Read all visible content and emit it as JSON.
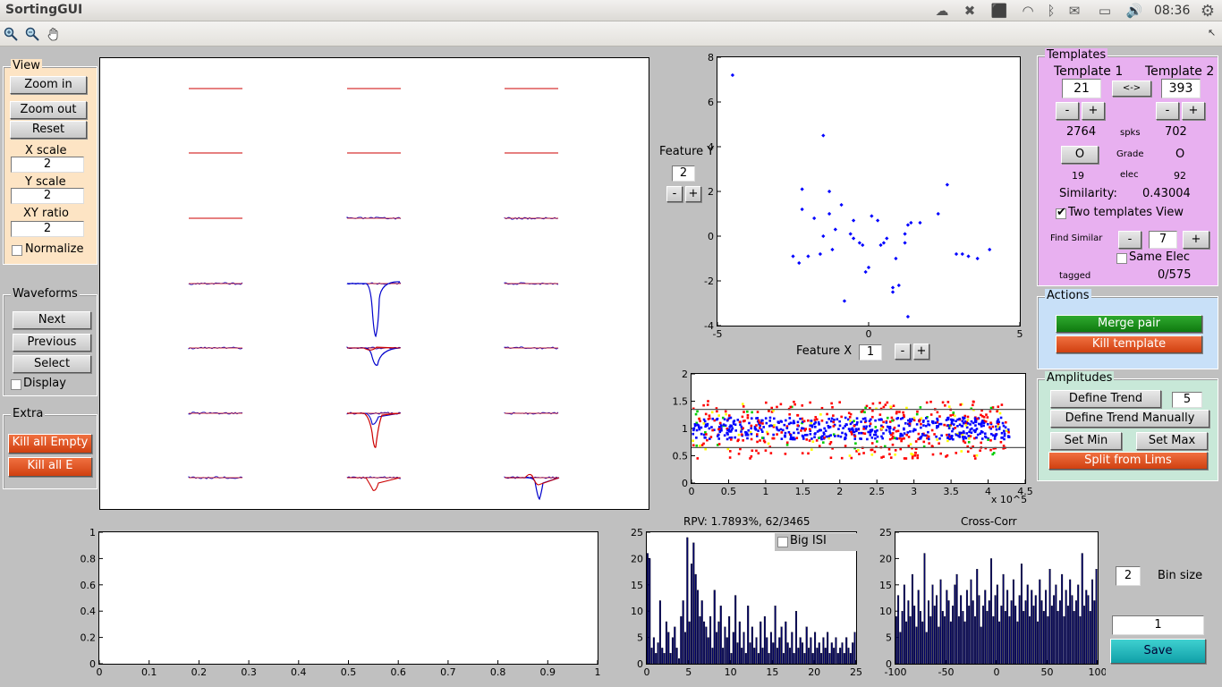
{
  "app": {
    "title": "SortingGUI",
    "clock": "08:36"
  },
  "tray_icons": [
    "cloud-icon",
    "dropbox-icon",
    "update-icon",
    "wifi-icon",
    "bluetooth-icon",
    "mail-icon",
    "battery-icon",
    "volume-icon",
    "gear-icon"
  ],
  "toolbar": {
    "tools": [
      "zoom-in-icon",
      "zoom-out-icon",
      "pan-icon"
    ]
  },
  "view": {
    "title": "View",
    "zoom_in": "Zoom in",
    "zoom_out": "Zoom out",
    "reset": "Reset",
    "x_scale_label": "X scale",
    "x_scale_value": "2",
    "y_scale_label": "Y scale",
    "y_scale_value": "2",
    "xy_ratio_label": "XY ratio",
    "xy_ratio_value": "2",
    "normalize_label": "Normalize"
  },
  "waveforms": {
    "title": "Waveforms",
    "next": "Next",
    "previous": "Previous",
    "select": "Select",
    "display_label": "Display"
  },
  "extra": {
    "title": "Extra",
    "kill_all_empty": "Kill all Empty",
    "kill_all_e": "Kill all E"
  },
  "feature": {
    "y_label": "Feature Y",
    "y_value": "2",
    "minus": "-",
    "plus": "+",
    "x_label": "Feature X",
    "x_value": "1"
  },
  "templates": {
    "title": "Templates",
    "t1_label": "Template 1",
    "t2_label": "Template 2",
    "t1_value": "21",
    "t2_value": "393",
    "swap": "<->",
    "minus": "-",
    "plus": "+",
    "t1_spikes": "2764",
    "spks_label": "spks",
    "t2_spikes": "702",
    "t1_grade": "O",
    "grade_label": "Grade",
    "t2_grade": "O",
    "t1_elec": "19",
    "elec_label": "elec",
    "t2_elec": "92",
    "similarity_label": "Similarity:",
    "similarity_value": "0.43004",
    "two_templates_label": "Two templates View",
    "find_similar_label": "Find Similar",
    "find_similar_value": "7",
    "same_elec_label": "Same Elec",
    "tagged_label": "tagged",
    "tagged_value": "0/575"
  },
  "actions": {
    "title": "Actions",
    "merge_pair": "Merge pair",
    "kill_template": "Kill template"
  },
  "amplitudes": {
    "title": "Amplitudes",
    "define_trend": "Define Trend",
    "trend_value": "5",
    "define_trend_manually": "Define Trend Manually",
    "set_min": "Set Min",
    "set_max": "Set Max",
    "split_from_lims": "Split from Lims"
  },
  "isi": {
    "title": "RPV: 1.7893%, 62/3465",
    "big_isi_label": "Big ISI"
  },
  "crosscorr": {
    "title": "Cross-Corr"
  },
  "bin": {
    "value": "2",
    "label": "Bin size"
  },
  "save": {
    "value": "1",
    "label": "Save"
  },
  "colors": {
    "templates_bg": "#e8b0f0",
    "actions_bg": "#c8e0f8",
    "amplitudes_bg": "#c8e8d8",
    "view_bg": "#fde4c4"
  },
  "chart_data": [
    {
      "type": "scatter",
      "name_ref": "feature-scatter",
      "xlim": [
        -5,
        5
      ],
      "ylim": [
        -4,
        8
      ],
      "x_ticks": [
        "-5",
        "0",
        "5"
      ],
      "y_ticks": [
        "-4",
        "-2",
        "0",
        "2",
        "4",
        "6",
        "8"
      ],
      "color": "#0000ff",
      "points": [
        [
          -4.5,
          7.2
        ],
        [
          -1.5,
          4.5
        ],
        [
          -2.2,
          2.1
        ],
        [
          -2.2,
          1.2
        ],
        [
          -1.8,
          0.8
        ],
        [
          -1.5,
          0
        ],
        [
          -1.2,
          -0.6
        ],
        [
          -1.6,
          -0.8
        ],
        [
          -2.5,
          -0.9
        ],
        [
          -2.3,
          -1.2
        ],
        [
          -2.0,
          -0.9
        ],
        [
          -1.3,
          1.0
        ],
        [
          -1.1,
          0.3
        ],
        [
          -0.9,
          1.4
        ],
        [
          -0.5,
          0.7
        ],
        [
          -0.5,
          -0.1
        ],
        [
          -0.3,
          -0.3
        ],
        [
          -0.1,
          -1.6
        ],
        [
          -0.2,
          -0.4
        ],
        [
          0.1,
          0.9
        ],
        [
          0.3,
          0.7
        ],
        [
          0.4,
          -0.4
        ],
        [
          0.5,
          -0.3
        ],
        [
          0.6,
          -0.1
        ],
        [
          0.9,
          -1.0
        ],
        [
          0.8,
          -2.3
        ],
        [
          1.0,
          -2.2
        ],
        [
          0.8,
          -2.5
        ],
        [
          1.2,
          -0.3
        ],
        [
          1.3,
          0.5
        ],
        [
          1.4,
          0.6
        ],
        [
          1.2,
          0.1
        ],
        [
          1.7,
          0.6
        ],
        [
          2.3,
          1.0
        ],
        [
          2.6,
          2.3
        ],
        [
          2.9,
          -0.8
        ],
        [
          3.1,
          -0.8
        ],
        [
          3.3,
          -0.9
        ],
        [
          3.6,
          -1.0
        ],
        [
          4.0,
          -0.6
        ],
        [
          1.3,
          -3.6
        ],
        [
          -0.8,
          -2.9
        ],
        [
          0.0,
          -1.4
        ],
        [
          -1.3,
          2.0
        ],
        [
          -0.6,
          0.1
        ]
      ]
    },
    {
      "type": "scatter",
      "name_ref": "amplitude-scatter",
      "xlim": [
        0,
        4.5
      ],
      "ylim": [
        0,
        2
      ],
      "x_ticks": [
        "0",
        "0.5",
        "1",
        "1.5",
        "2",
        "2.5",
        "3",
        "3.5",
        "4",
        "4.5"
      ],
      "y_ticks": [
        "0",
        "0.5",
        "1",
        "1.5",
        "2"
      ],
      "x_multiplier": "x 10^5",
      "limit_lines": [
        0.65,
        1.35
      ],
      "series_colors": [
        "#0000ff",
        "#ff0000",
        "#ffff00",
        "#00cc00"
      ]
    },
    {
      "type": "line",
      "name_ref": "empty-axes",
      "xlim": [
        0,
        1
      ],
      "ylim": [
        0,
        1
      ],
      "x_ticks": [
        "0",
        "0.1",
        "0.2",
        "0.3",
        "0.4",
        "0.5",
        "0.6",
        "0.7",
        "0.8",
        "0.9",
        "1"
      ],
      "y_ticks": [
        "0",
        "0.2",
        "0.4",
        "0.6",
        "0.8",
        "1"
      ]
    },
    {
      "type": "bar",
      "name_ref": "isi-histogram",
      "title": "RPV: 1.7893%, 62/3465",
      "xlim": [
        0,
        25
      ],
      "ylim": [
        0,
        25
      ],
      "x_ticks": [
        "0",
        "5",
        "10",
        "15",
        "20",
        "25"
      ],
      "y_ticks": [
        "0",
        "5",
        "10",
        "15",
        "20",
        "25"
      ],
      "values": [
        21,
        20,
        3,
        5,
        2,
        4,
        12,
        3,
        2,
        8,
        6,
        2,
        5,
        7,
        3,
        1,
        9,
        12,
        6,
        24,
        8,
        19,
        23,
        17,
        14,
        9,
        12,
        8,
        7,
        5,
        9,
        3,
        14,
        6,
        8,
        11,
        3,
        7,
        5,
        9,
        2,
        6,
        13,
        4,
        8,
        3,
        6,
        2,
        11,
        4,
        7,
        3,
        5,
        2,
        8,
        3,
        9,
        5,
        2,
        6,
        4,
        11,
        3,
        5,
        7,
        2,
        8,
        4,
        3,
        6,
        2,
        10,
        3,
        5,
        4,
        2,
        7,
        3,
        5,
        2,
        6,
        3,
        4,
        2,
        5,
        3,
        6,
        2,
        4,
        3,
        5,
        2,
        3,
        4,
        2,
        5,
        3,
        2,
        4,
        6
      ]
    },
    {
      "type": "bar",
      "name_ref": "crosscorr-histogram",
      "title": "Cross-Corr",
      "xlim": [
        -100,
        100
      ],
      "ylim": [
        0,
        25
      ],
      "x_ticks": [
        "-100",
        "-50",
        "0",
        "50",
        "100"
      ],
      "y_ticks": [
        "0",
        "5",
        "10",
        "15",
        "20",
        "25"
      ],
      "values": [
        9,
        13,
        6,
        10,
        15,
        8,
        12,
        9,
        17,
        11,
        7,
        14,
        10,
        8,
        21,
        6,
        12,
        9,
        15,
        11,
        13,
        7,
        16,
        10,
        9,
        14,
        12,
        8,
        11,
        15,
        17,
        9,
        13,
        10,
        8,
        14,
        11,
        16,
        12,
        9,
        18,
        13,
        7,
        11,
        14,
        10,
        12,
        20,
        9,
        13,
        15,
        8,
        11,
        17,
        10,
        14,
        9,
        12,
        16,
        11,
        8,
        13,
        19,
        10,
        12,
        15,
        9,
        14,
        11,
        13,
        8,
        16,
        12,
        10,
        14,
        9,
        18,
        11,
        13,
        15,
        10,
        12,
        17,
        9,
        14,
        11,
        16,
        13,
        10,
        12,
        15,
        9,
        21,
        11,
        14,
        13,
        10,
        16,
        12,
        18
      ]
    }
  ]
}
